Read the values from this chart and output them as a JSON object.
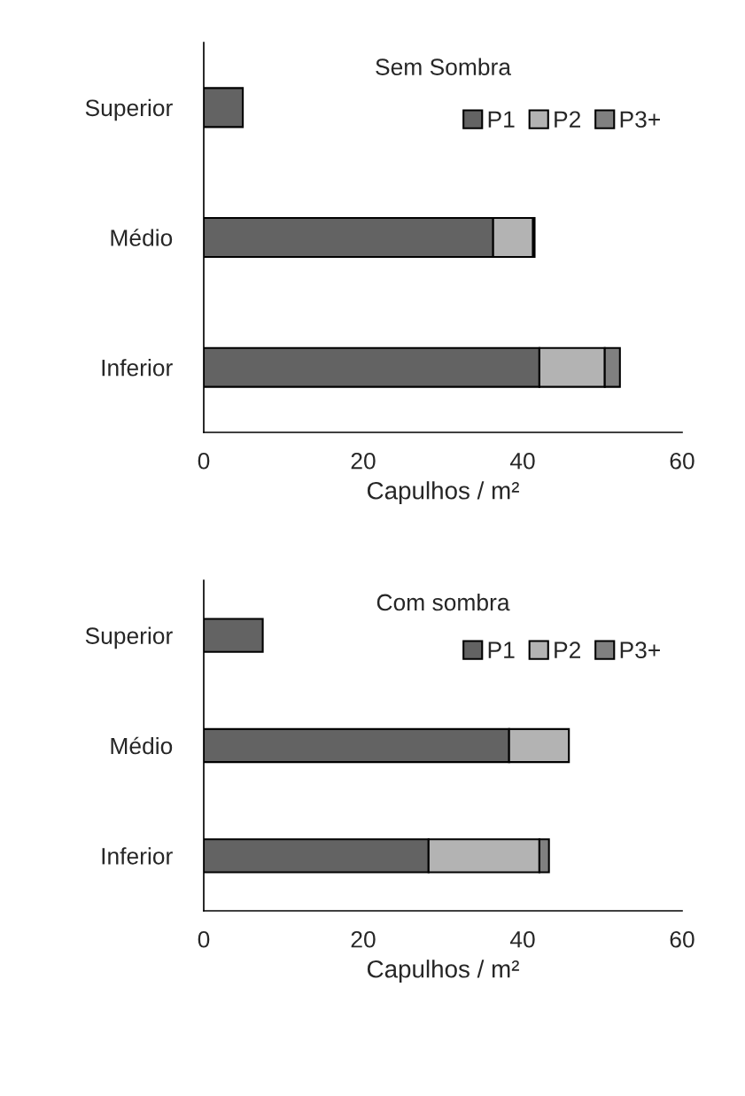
{
  "chart_data": [
    {
      "type": "bar",
      "orientation": "horizontal",
      "stacked": true,
      "title": "Sem Sombra",
      "xlabel": "Capulhos / m²",
      "categories": [
        "Superior",
        "Médio",
        "Inferior"
      ],
      "xlim": [
        0,
        60
      ],
      "xticks": [
        0,
        20,
        40,
        60
      ],
      "legend": "top right",
      "grid": false,
      "series": [
        {
          "name": "P1",
          "color": "#636363",
          "values": [
            4.9,
            36.3,
            42.1
          ]
        },
        {
          "name": "P2",
          "color": "#b3b3b3",
          "values": [
            null,
            5.0,
            8.2
          ]
        },
        {
          "name": "P3+",
          "color": "#808080",
          "values": [
            null,
            0.2,
            1.9
          ]
        }
      ]
    },
    {
      "type": "bar",
      "orientation": "horizontal",
      "stacked": true,
      "title": "Com sombra",
      "xlabel": "Capulhos / m²",
      "categories": [
        "Superior",
        "Médio",
        "Inferior"
      ],
      "xlim": [
        0,
        60
      ],
      "xticks": [
        0,
        20,
        40,
        60
      ],
      "legend": "top right",
      "grid": false,
      "series": [
        {
          "name": "P1",
          "color": "#636363",
          "values": [
            7.4,
            38.3,
            28.2
          ]
        },
        {
          "name": "P2",
          "color": "#b3b3b3",
          "values": [
            null,
            7.5,
            13.9
          ]
        },
        {
          "name": "P3+",
          "color": "#808080",
          "values": [
            null,
            null,
            1.2
          ]
        }
      ]
    }
  ]
}
